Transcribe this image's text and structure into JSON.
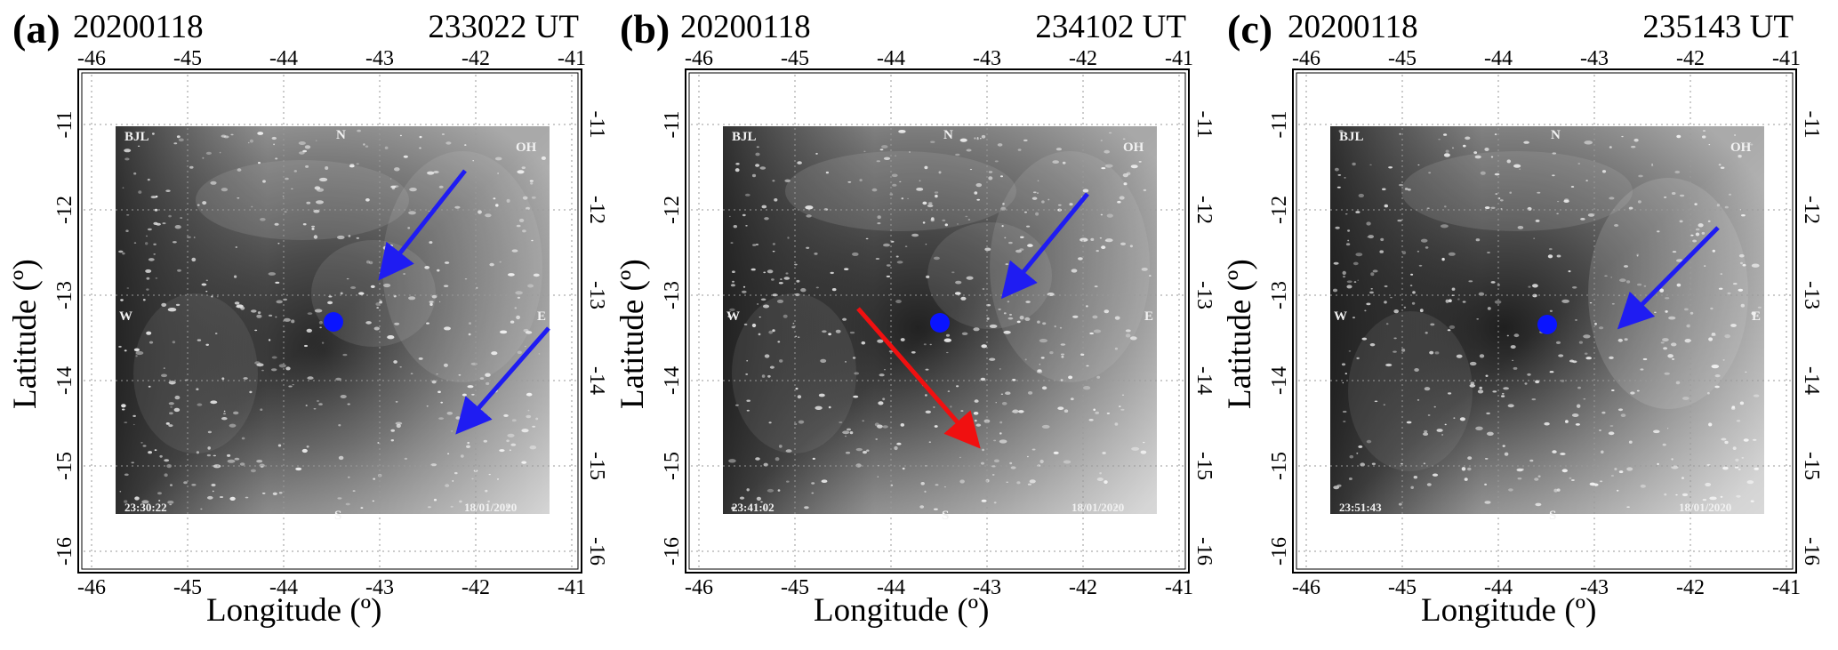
{
  "xticks": [
    "-46",
    "-45",
    "-44",
    "-43",
    "-42",
    "-41"
  ],
  "yticks": [
    "-11",
    "-12",
    "-13",
    "-14",
    "-15",
    "-16"
  ],
  "x_title": "Longitude (º)",
  "y_title": "Latitude (º)",
  "compass": {
    "north": "N",
    "south": "S",
    "west": "W",
    "east": "E"
  },
  "camera_station": "BJL",
  "filter": "OH",
  "panels": [
    {
      "label": "(a)",
      "date": "20200118",
      "ut": "233022 UT",
      "image_time": "23:30:22",
      "image_date": "18/01/2020",
      "center_marker": {
        "lon": -43.5,
        "lat": -13.3
      }
    },
    {
      "label": "(b)",
      "date": "20200118",
      "ut": "234102 UT",
      "image_time": "23:41:02",
      "image_date": "18/01/2020",
      "center_marker": {
        "lon": -43.5,
        "lat": -13.3
      }
    },
    {
      "label": "(c)",
      "date": "20200118",
      "ut": "235143 UT",
      "image_time": "23:51:43",
      "image_date": "18/01/2020",
      "center_marker": {
        "lon": -43.5,
        "lat": -13.3
      }
    }
  ],
  "colors": {
    "marker": "#0a14ff",
    "arrow_blue": "#1f1cf2",
    "arrow_red": "#f01010"
  }
}
